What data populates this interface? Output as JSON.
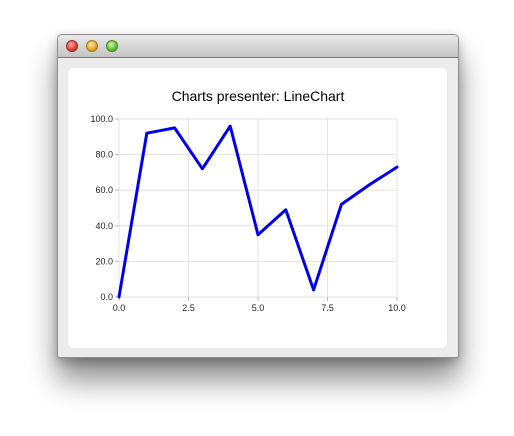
{
  "window": {
    "buttons": [
      "close",
      "minimize",
      "zoom"
    ]
  },
  "chart_data": {
    "type": "line",
    "title": "Charts presenter: LineChart",
    "xlabel": "",
    "ylabel": "",
    "xlim": [
      0,
      10
    ],
    "ylim": [
      0,
      100
    ],
    "xticks": [
      "0.0",
      "2.5",
      "5.0",
      "7.5",
      "10.0"
    ],
    "yticks": [
      "0.0",
      "20.0",
      "40.0",
      "60.0",
      "80.0",
      "100.0"
    ],
    "grid": true,
    "legend": "none",
    "series": [
      {
        "color": "#0000ee",
        "x": [
          0,
          1,
          2,
          3,
          4,
          5,
          6,
          7,
          8,
          9,
          10
        ],
        "y": [
          0,
          92,
          95,
          72,
          96,
          35,
          49,
          4,
          52,
          63,
          73
        ]
      }
    ]
  }
}
